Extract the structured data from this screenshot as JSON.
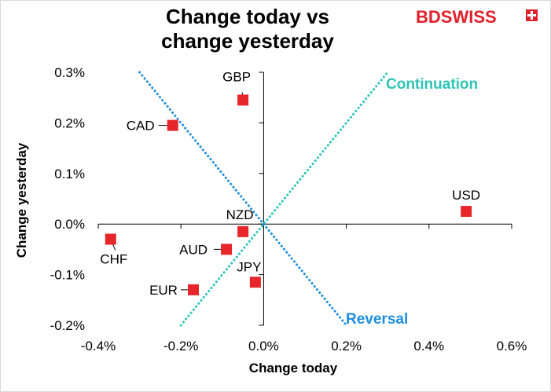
{
  "header": {
    "title_line1": "Change today vs",
    "title_line2": "change yesterday"
  },
  "logo": {
    "text": "BDSWISS"
  },
  "colors": {
    "points": "#e6262b",
    "continuation": "#2ec4b6",
    "reversal": "#1f8ee0"
  },
  "chart_data": {
    "type": "scatter",
    "xlabel": "Change today",
    "ylabel": "Change yesterday",
    "xlim": [
      -0.4,
      0.6
    ],
    "ylim": [
      -0.2,
      0.3
    ],
    "xticks": [
      -0.4,
      -0.2,
      0.0,
      0.2,
      0.4,
      0.6
    ],
    "yticks": [
      -0.2,
      -0.1,
      0.0,
      0.1,
      0.2,
      0.3
    ],
    "xtick_labels": [
      "-0.4%",
      "-0.2%",
      "0.0%",
      "0.2%",
      "0.4%",
      "0.6%"
    ],
    "ytick_labels": [
      "-0.2%",
      "-0.1%",
      "0.0%",
      "0.1%",
      "0.2%",
      "0.3%"
    ],
    "points": [
      {
        "label": "GBP",
        "x": -0.05,
        "y": 0.245
      },
      {
        "label": "CAD",
        "x": -0.22,
        "y": 0.195
      },
      {
        "label": "USD",
        "x": 0.49,
        "y": 0.025
      },
      {
        "label": "NZD",
        "x": -0.05,
        "y": -0.015
      },
      {
        "label": "CHF",
        "x": -0.37,
        "y": -0.03
      },
      {
        "label": "AUD",
        "x": -0.09,
        "y": -0.05
      },
      {
        "label": "JPY",
        "x": -0.02,
        "y": -0.115
      },
      {
        "label": "EUR",
        "x": -0.17,
        "y": -0.13
      }
    ],
    "lines": [
      {
        "name": "Continuation",
        "x": [
          -0.2,
          0.3
        ],
        "y": [
          -0.2,
          0.3
        ]
      },
      {
        "name": "Reversal",
        "x": [
          -0.3,
          0.2
        ],
        "y": [
          0.3,
          -0.2
        ]
      }
    ]
  }
}
